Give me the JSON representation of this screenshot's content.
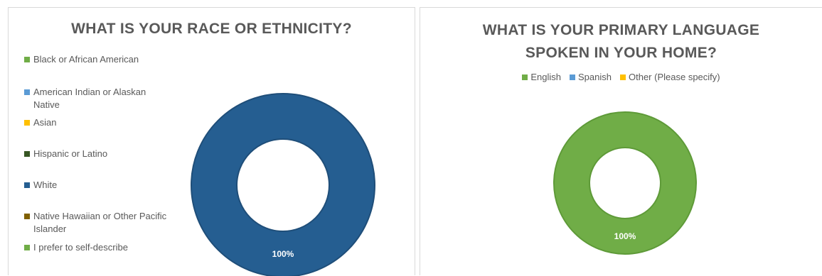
{
  "chart_data": [
    {
      "type": "pie",
      "title": "WHAT IS YOUR RACE OR ETHNICITY?",
      "legend_position": "left",
      "categories": [
        "Black or African American",
        "American Indian or Alaskan Native",
        "Asian",
        "Hispanic or Latino",
        "White",
        "Native Hawaiian or Other Pacific Islander",
        "I prefer to self-describe"
      ],
      "values": [
        0,
        0,
        0,
        0,
        100,
        0,
        0
      ],
      "colors": [
        "#70ad47",
        "#5b9bd5",
        "#ffc000",
        "#375623",
        "#255e91",
        "#806000",
        "#70ad47"
      ],
      "data_labels": [
        "",
        "",
        "",
        "",
        "100%",
        "",
        ""
      ]
    },
    {
      "type": "pie",
      "title": "WHAT IS YOUR PRIMARY LANGUAGE SPOKEN IN YOUR HOME?",
      "legend_position": "top",
      "categories": [
        "English",
        "Spanish",
        "Other (Please specify)"
      ],
      "values": [
        100,
        0,
        0
      ],
      "colors": [
        "#70ad47",
        "#5b9bd5",
        "#ffc000"
      ],
      "data_labels": [
        "100%",
        "",
        ""
      ]
    }
  ],
  "ui": {
    "title_1": "WHAT IS YOUR RACE OR ETHNICITY?",
    "title_2_line1": "WHAT IS YOUR PRIMARY LANGUAGE",
    "title_2_line2": "SPOKEN IN YOUR HOME?"
  }
}
